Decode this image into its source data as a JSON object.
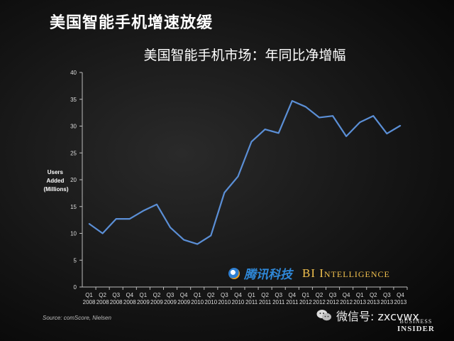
{
  "page": {
    "heading": "美国智能手机增速放缓",
    "source": "Source: comScore, Nielsen",
    "watermark": {
      "name": "腾讯科技",
      "bi": "BI Intelligence"
    },
    "wechat": "微信号: zxcvwx",
    "bi_logo": {
      "line1": "BUSINESS",
      "line2": "INSIDER"
    }
  },
  "colors": {
    "line": "#5b8fd6",
    "background": "#151515",
    "text": "#ffffff"
  },
  "chart_data": {
    "type": "line",
    "title": "美国智能手机市场：年同比净增幅",
    "ylabel_lines": [
      "Users",
      "Added",
      "(Millions)"
    ],
    "xlabel": "",
    "ylim": [
      0,
      40
    ],
    "yticks": [
      0,
      5,
      10,
      15,
      20,
      25,
      30,
      35,
      40
    ],
    "grid": false,
    "categories": [
      [
        "Q1",
        "2008"
      ],
      [
        "Q2",
        "2008"
      ],
      [
        "Q3",
        "2008"
      ],
      [
        "Q4",
        "2008"
      ],
      [
        "Q1",
        "2009"
      ],
      [
        "Q2",
        "2009"
      ],
      [
        "Q3",
        "2009"
      ],
      [
        "Q4",
        "2009"
      ],
      [
        "Q1",
        "2010"
      ],
      [
        "Q2",
        "2010"
      ],
      [
        "Q3",
        "2010"
      ],
      [
        "Q4",
        "2010"
      ],
      [
        "Q1",
        "2011"
      ],
      [
        "Q2",
        "2011"
      ],
      [
        "Q3",
        "2011"
      ],
      [
        "Q4",
        "2011"
      ],
      [
        "Q1",
        "2012"
      ],
      [
        "Q2",
        "2012"
      ],
      [
        "Q3",
        "2012"
      ],
      [
        "Q4",
        "2012"
      ],
      [
        "Q1",
        "2013"
      ],
      [
        "Q2",
        "2013"
      ],
      [
        "Q3",
        "2013"
      ],
      [
        "Q4",
        "2013"
      ]
    ],
    "series": [
      {
        "values": [
          11.8,
          10.0,
          12.7,
          12.7,
          14.2,
          15.4,
          11.1,
          8.8,
          8.0,
          9.6,
          17.6,
          20.6,
          27.1,
          29.4,
          28.7,
          34.7,
          33.6,
          31.6,
          31.9,
          28.1,
          30.7,
          31.9,
          28.6,
          30.1
        ]
      }
    ]
  }
}
